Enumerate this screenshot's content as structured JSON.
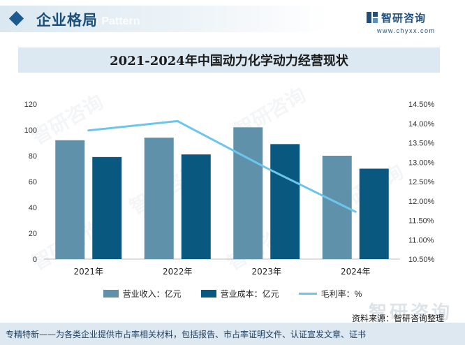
{
  "header": {
    "title": "企业格局",
    "title_bg_text": "e Pattern",
    "brand_name": "智研咨询",
    "brand_url": "www.chyxx.com"
  },
  "watermark_text": "智研咨询",
  "colors": {
    "revenue": "#5f92aa",
    "cost": "#08587f",
    "margin": "#6cc6ec",
    "accent": "#1c5b8f"
  },
  "chart_data": {
    "type": "bar",
    "title": "2021-2024年中国动力化学动力经营现状",
    "categories": [
      "2021年",
      "2022年",
      "2023年",
      "2024年"
    ],
    "series": [
      {
        "name": "营业收入：亿元",
        "type": "bar",
        "axis": "left",
        "values": [
          92,
          94,
          102,
          80
        ]
      },
      {
        "name": "营业成本：亿元",
        "type": "bar",
        "axis": "left",
        "values": [
          79,
          81,
          89,
          70
        ]
      },
      {
        "name": "毛利率：%",
        "type": "line",
        "axis": "right",
        "values": [
          13.82,
          14.06,
          12.85,
          11.72
        ]
      }
    ],
    "y_left": {
      "min": 0,
      "max": 120,
      "ticks": [
        "0",
        "20",
        "40",
        "60",
        "80",
        "100",
        "120"
      ]
    },
    "y_right": {
      "min": 10.5,
      "max": 14.5,
      "ticks": [
        "10.50%",
        "11.00%",
        "11.50%",
        "12.00%",
        "12.50%",
        "13.00%",
        "13.50%",
        "14.00%",
        "14.50%"
      ]
    },
    "grid": false,
    "legend_position": "bottom"
  },
  "legend": [
    {
      "label": "营业收入：亿元",
      "kind": "rect",
      "color": "#5f92aa"
    },
    {
      "label": "营业成本：亿元",
      "kind": "rect",
      "color": "#08587f"
    },
    {
      "label": "毛利率：%",
      "kind": "line",
      "color": "#6cc6ec"
    }
  ],
  "source": "资料来源：智研咨询整理",
  "footer": {
    "text": "专精特新——为各类企业提供市占率相关材料，包括报告、市占率证明文件、认证宣发文章、证书",
    "watermark": "智研咨询"
  }
}
